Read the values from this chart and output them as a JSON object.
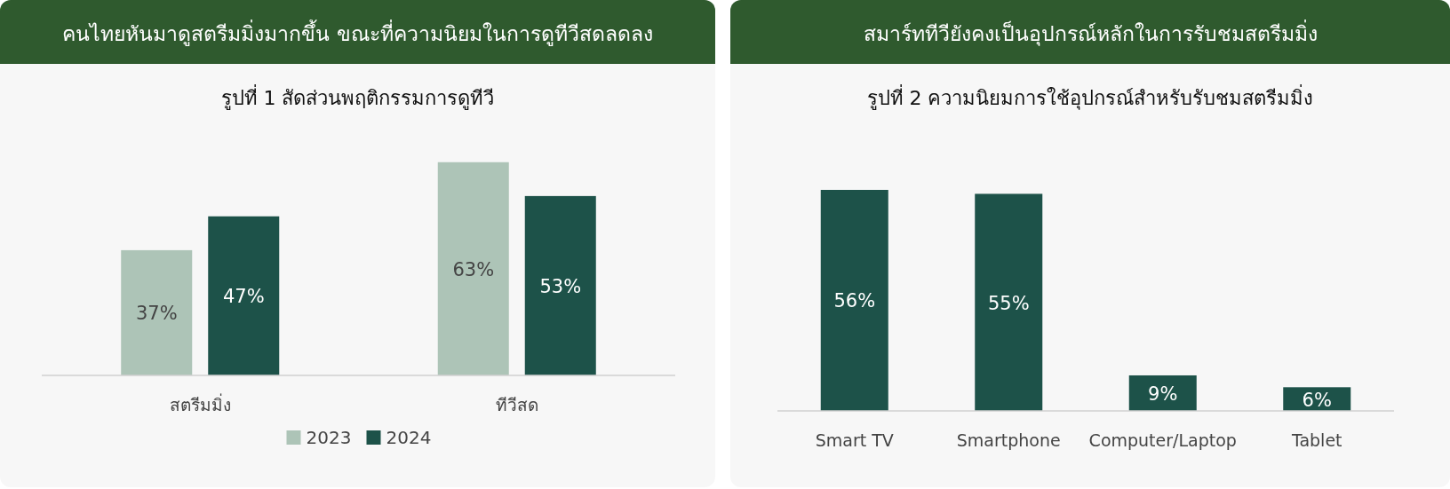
{
  "chart_data": [
    {
      "type": "bar",
      "title": "คนไทยหันมาดูสตรีมมิ่งมากขึ้น ขณะที่ความนิยมในการดูทีวีสดลดลง",
      "subtitle": "รูปที่ 1 สัดส่วนพฤติกรรมการดูทีวี",
      "categories": [
        "สตรีมมิ่ง",
        "ทีวีสด"
      ],
      "legend": "bottom",
      "series": [
        {
          "name": "2023",
          "color": "#adc4b7",
          "values": [
            37,
            63
          ],
          "value_labels": [
            "37%",
            "63%"
          ]
        },
        {
          "name": "2024",
          "color": "#1d5249",
          "values": [
            47,
            53
          ],
          "value_labels": [
            "47%",
            "53%"
          ]
        }
      ]
    },
    {
      "type": "bar",
      "title": "สมาร์ททีวียังคงเป็นอุปกรณ์หลักในการรับชมสตรีมมิ่ง",
      "subtitle": "รูปที่ 2 ความนิยมการใช้อุปกรณ์สำหรับรับชมสตรีมมิ่ง",
      "categories": [
        "Smart TV",
        "Smartphone",
        "Computer/Laptop",
        "Tablet"
      ],
      "color": "#1d5249",
      "values": [
        56,
        55,
        9,
        6
      ],
      "value_labels": [
        "56%",
        "55%",
        "9%",
        "6%"
      ]
    }
  ]
}
